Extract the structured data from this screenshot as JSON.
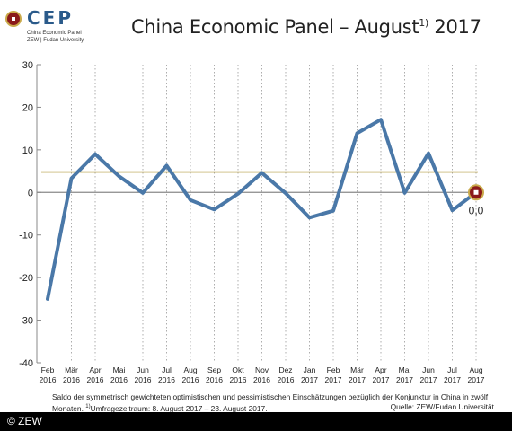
{
  "logo": {
    "name": "CEP",
    "line1": "China Economic Panel",
    "line2": "ZEW | Fudan University"
  },
  "title": {
    "main": "China Economic Panel – August",
    "sup": "1)",
    "year": "2017"
  },
  "chart_data": {
    "type": "line",
    "categories": [
      [
        "Feb",
        "2016"
      ],
      [
        "Mär",
        "2016"
      ],
      [
        "Apr",
        "2016"
      ],
      [
        "Mai",
        "2016"
      ],
      [
        "Jun",
        "2016"
      ],
      [
        "Jul",
        "2016"
      ],
      [
        "Aug",
        "2016"
      ],
      [
        "Sep",
        "2016"
      ],
      [
        "Okt",
        "2016"
      ],
      [
        "Nov",
        "2016"
      ],
      [
        "Dez",
        "2016"
      ],
      [
        "Jan",
        "2017"
      ],
      [
        "Feb",
        "2017"
      ],
      [
        "Mär",
        "2017"
      ],
      [
        "Apr",
        "2017"
      ],
      [
        "Mai",
        "2017"
      ],
      [
        "Jun",
        "2017"
      ],
      [
        "Jul",
        "2017"
      ],
      [
        "Aug",
        "2017"
      ]
    ],
    "series": [
      {
        "values": [
          -25,
          3.3,
          9.0,
          3.8,
          -0.1,
          6.3,
          -1.8,
          -4.0,
          -0.3,
          4.6,
          -0.2,
          -5.9,
          -4.3,
          13.9,
          17.1,
          -0.1,
          9.2,
          -4.2,
          0.0
        ],
        "color": "#4a78a8"
      }
    ],
    "reference_line": {
      "value": 4.8,
      "color": "#b8a04a"
    },
    "last_value_label": "0,0",
    "ylim": [
      -40,
      30
    ],
    "yticks": [
      30,
      20,
      10,
      0,
      -10,
      -20,
      -30,
      -40
    ],
    "grid": "vertical-dotted",
    "zero_line": true,
    "xlabel": "",
    "ylabel": ""
  },
  "footnote": {
    "line1": "Saldo der symmetrisch gewichteten optimistischen und pessimistischen Einschätzungen bezüglich der Konjunktur in China in zwölf",
    "line2_prefix": "Monaten.",
    "line2_sup": "1)",
    "line2_text": "Umfragezeitraum: 8. August 2017 – 23. August 2017.",
    "source": "Quelle: ZEW/Fudan Universität"
  },
  "copyright": "© ZEW"
}
